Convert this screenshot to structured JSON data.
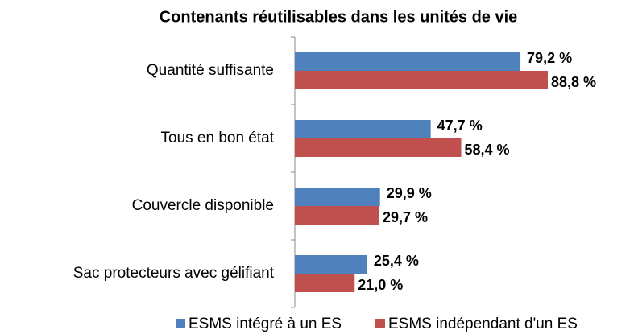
{
  "chart_data": {
    "type": "bar",
    "orientation": "horizontal",
    "title": "Contenants réutilisables dans les unités de vie",
    "categories": [
      "Quantité suffisante",
      "Tous en bon état",
      "Couvercle disponible",
      "Sac protecteurs avec gélifiant"
    ],
    "series": [
      {
        "name": "ESMS intégré à un ES",
        "color": "#4f81bd",
        "values": [
          79.2,
          47.7,
          29.9,
          25.4
        ],
        "value_labels": [
          "79,2 %",
          "47,7 %",
          "29,9 %",
          "25,4 %"
        ]
      },
      {
        "name": "ESMS indépendant d'un ES",
        "color": "#c0504d",
        "values": [
          88.8,
          58.4,
          29.7,
          21.0
        ],
        "value_labels": [
          "88,8 %",
          "58,4 %",
          "29,7 %",
          "21,0 %"
        ]
      }
    ],
    "legend": "bottom"
  }
}
